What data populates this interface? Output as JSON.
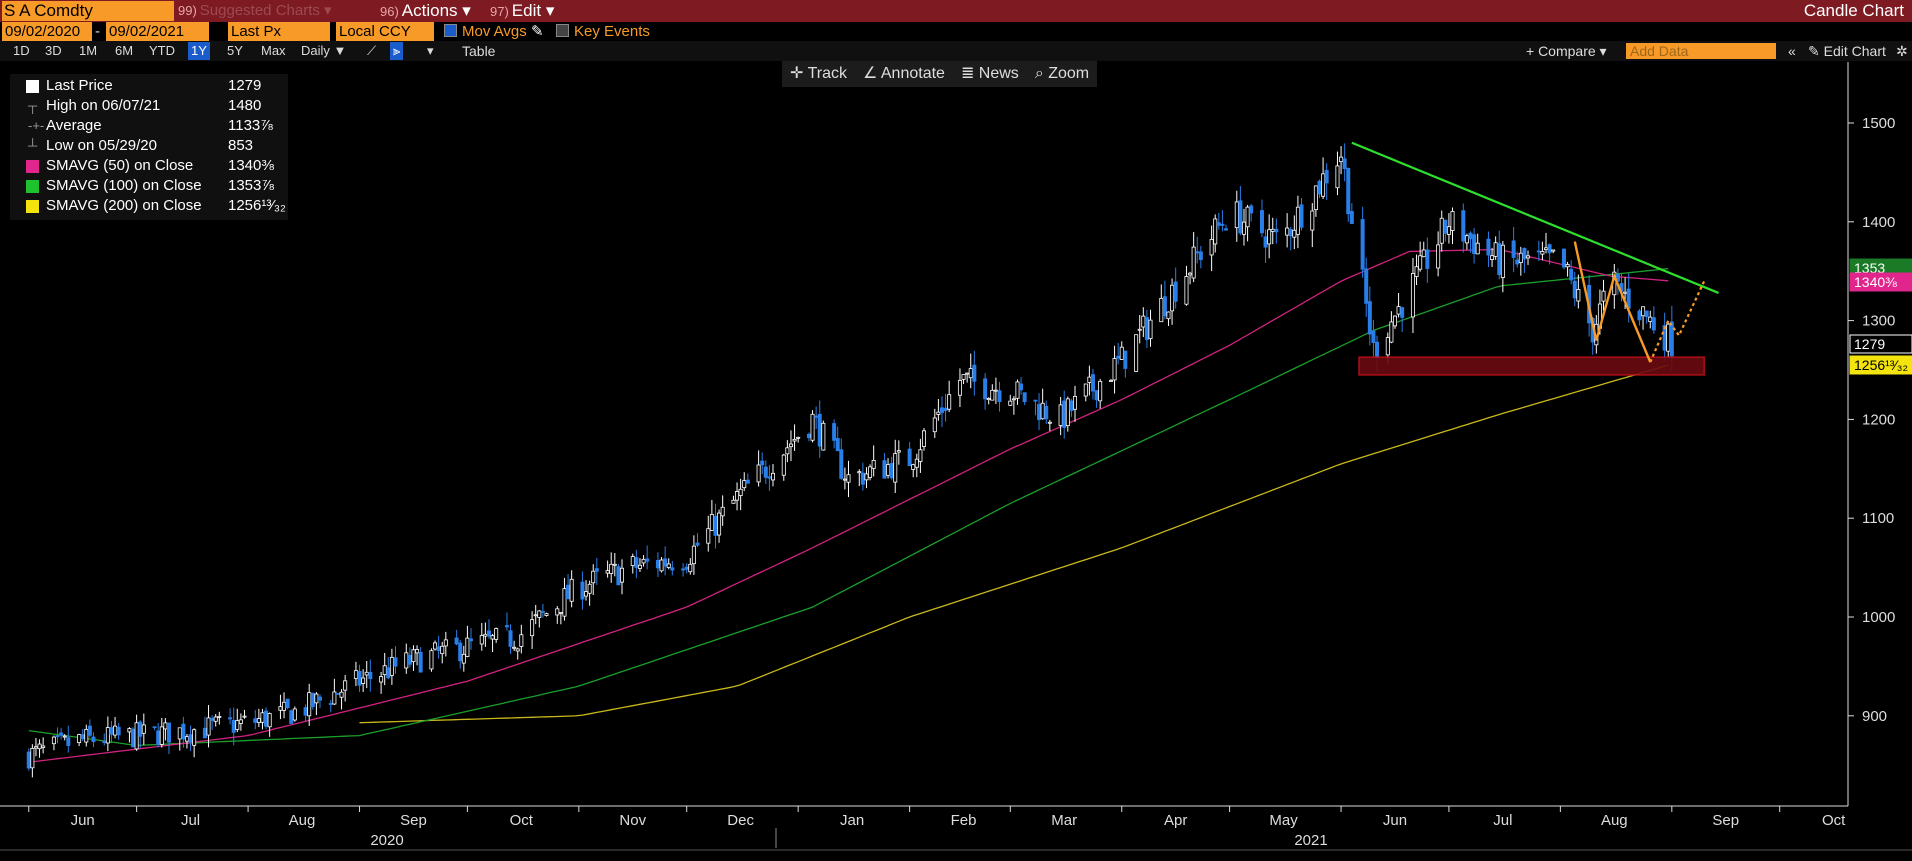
{
  "header": {
    "ticker": "S A Comdty",
    "suggested_num": "99)",
    "suggested": "Suggested Charts",
    "actions_num": "96)",
    "actions": "Actions",
    "edit_num": "97)",
    "edit": "Edit",
    "chart_kind": "Candle Chart"
  },
  "controls": {
    "start_date": "09/02/2020",
    "end_date": "09/02/2021",
    "price_field": "Last Px",
    "currency": "Local CCY",
    "mov_avgs": "Mov Avgs",
    "key_events": "Key Events",
    "periods": [
      "1D",
      "3D",
      "1M",
      "6M",
      "YTD",
      "1Y",
      "5Y",
      "Max"
    ],
    "selected_period": "1Y",
    "frequency": "Daily",
    "table": "Table",
    "compare": "+ Compare",
    "add_data_placeholder": "Add Data",
    "edit_chart": "Edit Chart"
  },
  "toolbar": {
    "track": "Track",
    "annotate": "Annotate",
    "news": "News",
    "zoom": "Zoom"
  },
  "legend": {
    "rows": [
      {
        "label": "Last Price",
        "value": "1279",
        "color": "#ffffff"
      },
      {
        "label": "High on 06/07/21",
        "value": "1480"
      },
      {
        "label": "Average",
        "value": "1133⅞"
      },
      {
        "label": "Low on 05/29/20",
        "value": "853"
      },
      {
        "label": "SMAVG (50)  on Close",
        "value": "1340⅜",
        "color": "#e0258c"
      },
      {
        "label": "SMAVG (100)  on Close",
        "value": "1353⅞",
        "color": "#1ec12e"
      },
      {
        "label": "SMAVG (200)  on Close",
        "value": "1256¹³⁄₃₂",
        "color": "#f2e40c"
      }
    ]
  },
  "chart_data": {
    "type": "candlestick",
    "y_ticks": [
      900,
      1000,
      1100,
      1200,
      1300,
      1400,
      1500
    ],
    "ylim": [
      815,
      1560
    ],
    "x_month_labels": [
      "Jun",
      "Jul",
      "Aug",
      "Sep",
      "Oct",
      "Nov",
      "Dec",
      "Jan",
      "Feb",
      "Mar",
      "Apr",
      "May",
      "Jun",
      "Jul",
      "Aug",
      "Sep",
      "Oct"
    ],
    "year_labels": [
      "2020",
      "2021"
    ],
    "close_series_weekly": [
      {
        "date": "2020-06-01",
        "close": 860
      },
      {
        "date": "2020-06-15",
        "close": 875
      },
      {
        "date": "2020-07-01",
        "close": 880
      },
      {
        "date": "2020-07-15",
        "close": 885
      },
      {
        "date": "2020-08-01",
        "close": 893
      },
      {
        "date": "2020-08-15",
        "close": 905
      },
      {
        "date": "2020-09-01",
        "close": 935
      },
      {
        "date": "2020-09-15",
        "close": 955
      },
      {
        "date": "2020-10-01",
        "close": 970
      },
      {
        "date": "2020-10-15",
        "close": 980
      },
      {
        "date": "2020-11-01",
        "close": 1030
      },
      {
        "date": "2020-11-15",
        "close": 1050
      },
      {
        "date": "2020-12-01",
        "close": 1060
      },
      {
        "date": "2020-12-15",
        "close": 1120
      },
      {
        "date": "2021-01-05",
        "close": 1200
      },
      {
        "date": "2021-01-15",
        "close": 1140
      },
      {
        "date": "2021-02-01",
        "close": 1160
      },
      {
        "date": "2021-02-15",
        "close": 1240
      },
      {
        "date": "2021-03-01",
        "close": 1230
      },
      {
        "date": "2021-03-15",
        "close": 1200
      },
      {
        "date": "2021-04-01",
        "close": 1260
      },
      {
        "date": "2021-04-15",
        "close": 1330
      },
      {
        "date": "2021-05-01",
        "close": 1410
      },
      {
        "date": "2021-05-15",
        "close": 1380
      },
      {
        "date": "2021-06-01",
        "close": 1470
      },
      {
        "date": "2021-06-10",
        "close": 1270
      },
      {
        "date": "2021-06-20",
        "close": 1330
      },
      {
        "date": "2021-07-01",
        "close": 1400
      },
      {
        "date": "2021-07-15",
        "close": 1360
      },
      {
        "date": "2021-08-01",
        "close": 1360
      },
      {
        "date": "2021-08-10",
        "close": 1290
      },
      {
        "date": "2021-08-15",
        "close": 1340
      },
      {
        "date": "2021-09-01",
        "close": 1279
      }
    ],
    "sma50": [
      {
        "date": "2020-06-01",
        "close": 853
      },
      {
        "date": "2020-08-01",
        "close": 880
      },
      {
        "date": "2020-10-01",
        "close": 935
      },
      {
        "date": "2020-12-01",
        "close": 1010
      },
      {
        "date": "2021-01-05",
        "close": 1070
      },
      {
        "date": "2021-03-01",
        "close": 1170
      },
      {
        "date": "2021-04-01",
        "close": 1220
      },
      {
        "date": "2021-05-01",
        "close": 1275
      },
      {
        "date": "2021-06-01",
        "close": 1340
      },
      {
        "date": "2021-06-20",
        "close": 1370
      },
      {
        "date": "2021-07-15",
        "close": 1372
      },
      {
        "date": "2021-08-15",
        "close": 1345
      },
      {
        "date": "2021-09-01",
        "close": 1340
      }
    ],
    "sma100": [
      {
        "date": "2020-06-01",
        "close": 885
      },
      {
        "date": "2020-07-01",
        "close": 870
      },
      {
        "date": "2020-09-01",
        "close": 880
      },
      {
        "date": "2020-11-01",
        "close": 930
      },
      {
        "date": "2021-01-05",
        "close": 1010
      },
      {
        "date": "2021-03-01",
        "close": 1115
      },
      {
        "date": "2021-05-01",
        "close": 1220
      },
      {
        "date": "2021-06-10",
        "close": 1290
      },
      {
        "date": "2021-07-15",
        "close": 1335
      },
      {
        "date": "2021-09-01",
        "close": 1353
      }
    ],
    "sma200": [
      {
        "date": "2020-09-01",
        "close": 893
      },
      {
        "date": "2020-11-01",
        "close": 900
      },
      {
        "date": "2020-12-15",
        "close": 930
      },
      {
        "date": "2021-02-01",
        "close": 1000
      },
      {
        "date": "2021-04-01",
        "close": 1070
      },
      {
        "date": "2021-06-01",
        "close": 1155
      },
      {
        "date": "2021-07-15",
        "close": 1205
      },
      {
        "date": "2021-09-01",
        "close": 1256
      }
    ],
    "right_axis_tags": [
      {
        "value": "1353",
        "color": "#1ec12e"
      },
      {
        "value": "1340⅜",
        "color": "#e0258c"
      },
      {
        "value": "1279",
        "color": "#ffffff"
      },
      {
        "value": "1256¹³⁄₃₂",
        "color": "#f2e40c"
      }
    ],
    "annotations": {
      "trendline_color": "#2ee02e",
      "support_box_color": "#c0101a",
      "pattern_color": "#f79a27"
    },
    "colors": {
      "up": "#ffffff",
      "down": "#2a7ee8",
      "background": "#000000"
    }
  }
}
